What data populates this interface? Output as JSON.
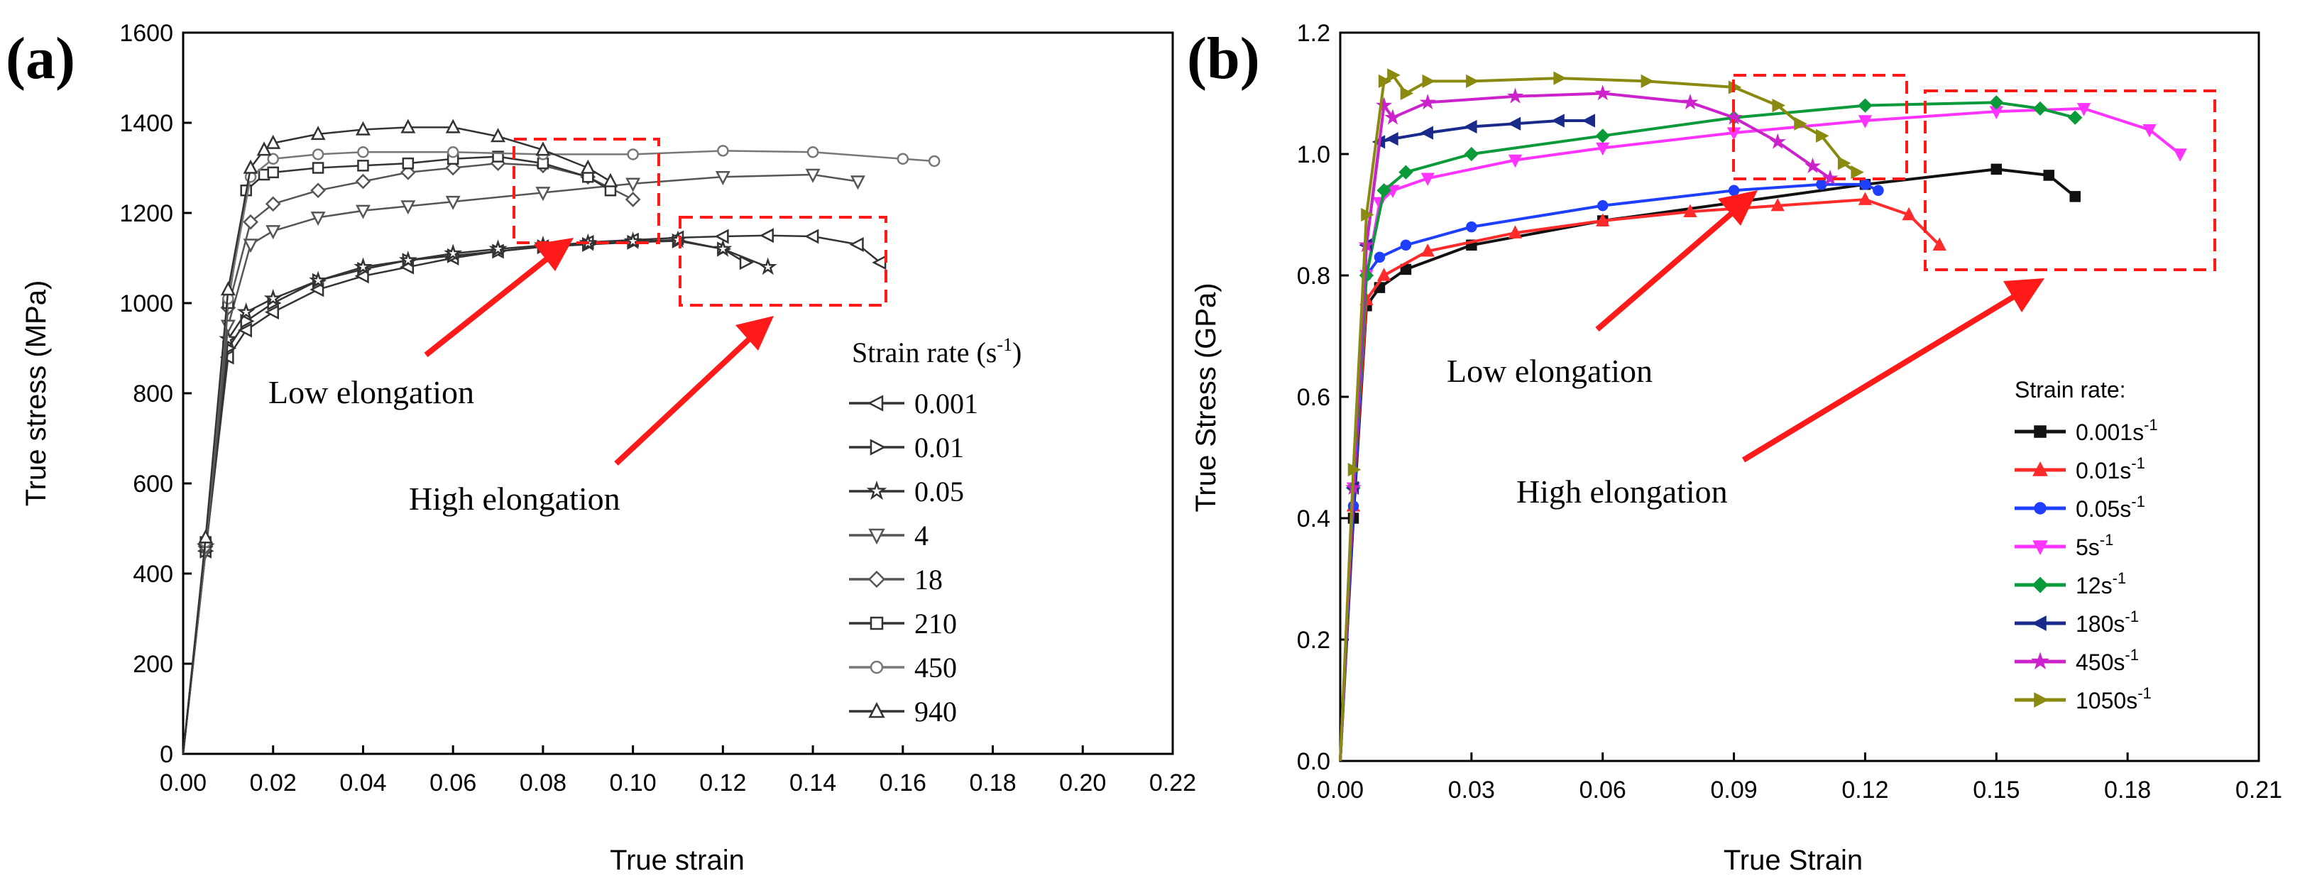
{
  "chart_data": [
    {
      "panel": "(a)",
      "type": "line",
      "xlabel": "True strain",
      "ylabel": "True stress (MPa)",
      "xlim": [
        0,
        0.22
      ],
      "ylim": [
        0,
        1600
      ],
      "xticks": [
        "0.00",
        "0.02",
        "0.04",
        "0.06",
        "0.08",
        "0.10",
        "0.12",
        "0.14",
        "0.16",
        "0.18",
        "0.20",
        "0.22"
      ],
      "yticks": [
        "0",
        "200",
        "400",
        "600",
        "800",
        "1000",
        "1200",
        "1400",
        "1600"
      ],
      "legend_title": "Strain rate (s",
      "legend_title_sup": "-1",
      "legend_title_end": ")",
      "series": [
        {
          "name": "0.001",
          "marker": "tri-left",
          "color": "#333333",
          "x": [
            0,
            0.005,
            0.01,
            0.014,
            0.02,
            0.03,
            0.04,
            0.05,
            0.06,
            0.07,
            0.08,
            0.09,
            0.1,
            0.11,
            0.12,
            0.13,
            0.14,
            0.15,
            0.155
          ],
          "y": [
            0,
            450,
            880,
            940,
            980,
            1030,
            1060,
            1080,
            1100,
            1115,
            1125,
            1135,
            1140,
            1145,
            1148,
            1150,
            1148,
            1130,
            1090
          ]
        },
        {
          "name": "0.01",
          "marker": "tri-right",
          "color": "#333333",
          "x": [
            0,
            0.005,
            0.01,
            0.014,
            0.02,
            0.03,
            0.04,
            0.05,
            0.06,
            0.07,
            0.08,
            0.09,
            0.1,
            0.11,
            0.12,
            0.125
          ],
          "y": [
            0,
            450,
            900,
            960,
            1000,
            1050,
            1075,
            1095,
            1105,
            1115,
            1125,
            1130,
            1135,
            1138,
            1120,
            1090
          ]
        },
        {
          "name": "0.05",
          "marker": "star",
          "color": "#333333",
          "x": [
            0,
            0.005,
            0.01,
            0.014,
            0.02,
            0.03,
            0.04,
            0.05,
            0.06,
            0.07,
            0.08,
            0.09,
            0.1,
            0.11,
            0.12,
            0.13
          ],
          "y": [
            0,
            460,
            920,
            980,
            1010,
            1050,
            1080,
            1095,
            1110,
            1120,
            1128,
            1133,
            1137,
            1140,
            1120,
            1080
          ]
        },
        {
          "name": "4",
          "marker": "tri-down",
          "color": "#555555",
          "x": [
            0,
            0.005,
            0.01,
            0.015,
            0.02,
            0.03,
            0.04,
            0.05,
            0.06,
            0.08,
            0.1,
            0.12,
            0.14,
            0.15
          ],
          "y": [
            0,
            450,
            950,
            1130,
            1160,
            1190,
            1205,
            1215,
            1225,
            1245,
            1265,
            1280,
            1285,
            1270
          ]
        },
        {
          "name": "18",
          "marker": "diamond",
          "color": "#555555",
          "x": [
            0,
            0.005,
            0.01,
            0.015,
            0.02,
            0.03,
            0.04,
            0.05,
            0.06,
            0.07,
            0.08,
            0.09,
            0.1
          ],
          "y": [
            0,
            460,
            990,
            1180,
            1220,
            1250,
            1270,
            1290,
            1300,
            1310,
            1305,
            1280,
            1230
          ]
        },
        {
          "name": "210",
          "marker": "square",
          "color": "#333333",
          "x": [
            0,
            0.005,
            0.01,
            0.014,
            0.018,
            0.02,
            0.03,
            0.04,
            0.05,
            0.06,
            0.07,
            0.08,
            0.09,
            0.095
          ],
          "y": [
            0,
            470,
            1000,
            1250,
            1285,
            1290,
            1300,
            1305,
            1310,
            1320,
            1325,
            1310,
            1280,
            1250
          ]
        },
        {
          "name": "450",
          "marker": "circle",
          "color": "#777777",
          "x": [
            0,
            0.005,
            0.01,
            0.015,
            0.02,
            0.03,
            0.04,
            0.06,
            0.08,
            0.1,
            0.12,
            0.14,
            0.16,
            0.167
          ],
          "y": [
            0,
            470,
            1010,
            1280,
            1320,
            1330,
            1335,
            1335,
            1330,
            1330,
            1338,
            1335,
            1320,
            1315
          ]
        },
        {
          "name": "940",
          "marker": "triangle",
          "color": "#333333",
          "x": [
            0,
            0.005,
            0.01,
            0.015,
            0.018,
            0.02,
            0.03,
            0.04,
            0.05,
            0.06,
            0.07,
            0.08,
            0.09,
            0.095
          ],
          "y": [
            0,
            480,
            1030,
            1300,
            1340,
            1355,
            1375,
            1385,
            1390,
            1390,
            1370,
            1340,
            1300,
            1270
          ]
        }
      ],
      "annotations": [
        {
          "text": "Low elongation"
        },
        {
          "text": "High elongation"
        }
      ]
    },
    {
      "panel": "(b)",
      "type": "line",
      "xlabel": "True Strain",
      "ylabel": "True Stress (GPa)",
      "xlim": [
        0,
        0.21
      ],
      "ylim": [
        0,
        1.2
      ],
      "xticks": [
        "0.00",
        "0.03",
        "0.06",
        "0.09",
        "0.12",
        "0.15",
        "0.18",
        "0.21"
      ],
      "yticks": [
        "0.0",
        "0.2",
        "0.4",
        "0.6",
        "0.8",
        "1.0",
        "1.2"
      ],
      "legend_title": "Strain rate:",
      "series": [
        {
          "name": "0.001s",
          "sup": "-1",
          "color": "#111111",
          "marker": "square",
          "x": [
            0,
            0.003,
            0.006,
            0.009,
            0.015,
            0.03,
            0.06,
            0.09,
            0.12,
            0.15,
            0.162,
            0.168
          ],
          "y": [
            0,
            0.4,
            0.75,
            0.78,
            0.81,
            0.85,
            0.89,
            0.92,
            0.95,
            0.975,
            0.965,
            0.93
          ]
        },
        {
          "name": "0.01s",
          "sup": "-1",
          "color": "#ff2a2a",
          "marker": "triangle",
          "x": [
            0,
            0.003,
            0.006,
            0.01,
            0.02,
            0.04,
            0.06,
            0.08,
            0.1,
            0.12,
            0.13,
            0.137
          ],
          "y": [
            0,
            0.42,
            0.76,
            0.8,
            0.84,
            0.87,
            0.89,
            0.905,
            0.915,
            0.925,
            0.9,
            0.85
          ]
        },
        {
          "name": "0.05s",
          "sup": "-1",
          "color": "#1f3fff",
          "marker": "circle",
          "x": [
            0,
            0.003,
            0.006,
            0.009,
            0.015,
            0.03,
            0.06,
            0.09,
            0.11,
            0.12,
            0.123
          ],
          "y": [
            0,
            0.42,
            0.8,
            0.83,
            0.85,
            0.88,
            0.915,
            0.94,
            0.95,
            0.95,
            0.94
          ]
        },
        {
          "name": "5s",
          "sup": "-1",
          "color": "#ff33ff",
          "marker": "tri-down",
          "x": [
            0,
            0.003,
            0.006,
            0.009,
            0.012,
            0.02,
            0.04,
            0.06,
            0.09,
            0.12,
            0.15,
            0.17,
            0.185,
            0.192
          ],
          "y": [
            0,
            0.45,
            0.8,
            0.92,
            0.94,
            0.96,
            0.99,
            1.01,
            1.035,
            1.055,
            1.07,
            1.075,
            1.04,
            1.0
          ]
        },
        {
          "name": "12s",
          "sup": "-1",
          "color": "#0a9a3a",
          "marker": "diamond",
          "x": [
            0,
            0.003,
            0.006,
            0.01,
            0.015,
            0.03,
            0.06,
            0.09,
            0.12,
            0.15,
            0.16,
            0.168
          ],
          "y": [
            0,
            0.45,
            0.8,
            0.94,
            0.97,
            1.0,
            1.03,
            1.06,
            1.08,
            1.085,
            1.075,
            1.06
          ]
        },
        {
          "name": "180s",
          "sup": "-1",
          "color": "#1a2a8a",
          "marker": "tri-left",
          "x": [
            0,
            0.003,
            0.006,
            0.009,
            0.012,
            0.02,
            0.03,
            0.04,
            0.05,
            0.057
          ],
          "y": [
            0,
            0.45,
            0.85,
            1.02,
            1.025,
            1.035,
            1.045,
            1.05,
            1.055,
            1.055
          ]
        },
        {
          "name": "450s",
          "sup": "-1",
          "color": "#cc22cc",
          "marker": "star",
          "x": [
            0,
            0.003,
            0.006,
            0.01,
            0.012,
            0.02,
            0.04,
            0.06,
            0.08,
            0.09,
            0.1,
            0.108,
            0.112
          ],
          "y": [
            0,
            0.45,
            0.85,
            1.08,
            1.06,
            1.085,
            1.095,
            1.1,
            1.085,
            1.06,
            1.02,
            0.98,
            0.96
          ]
        },
        {
          "name": "1050s",
          "sup": "-1",
          "color": "#8a8a10",
          "marker": "tri-right",
          "x": [
            0,
            0.003,
            0.006,
            0.01,
            0.012,
            0.015,
            0.02,
            0.03,
            0.05,
            0.07,
            0.09,
            0.1,
            0.105,
            0.11,
            0.115,
            0.118
          ],
          "y": [
            0,
            0.48,
            0.9,
            1.12,
            1.13,
            1.1,
            1.12,
            1.12,
            1.125,
            1.12,
            1.11,
            1.08,
            1.05,
            1.03,
            0.985,
            0.97
          ]
        }
      ],
      "annotations": [
        {
          "text": "Low elongation"
        },
        {
          "text": "High elongation"
        }
      ]
    }
  ]
}
